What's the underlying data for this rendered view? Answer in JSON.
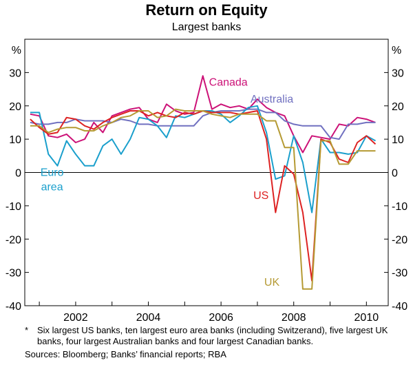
{
  "title": "Return on Equity",
  "subtitle": "Largest banks",
  "footnote_marker": "*",
  "footnote": "Six largest US banks, ten largest euro area banks (including Switzerand), five largest UK banks, four largest Australian banks and four largest Canadian banks.",
  "source": "Sources: Bloomberg; Banks’ financial reports; RBA",
  "chart_data": {
    "type": "line",
    "ylabel_left": "%",
    "ylabel_right": "%",
    "ylim": [
      -40,
      40
    ],
    "yticks": [
      30,
      20,
      10,
      0,
      -10,
      -20,
      -30,
      -40
    ],
    "xlim": [
      2000.6,
      2010.6
    ],
    "xtick_labels": [
      "2002",
      "2004",
      "2006",
      "2008",
      "2010"
    ],
    "xtick_values": [
      2002,
      2004,
      2006,
      2008,
      2010
    ],
    "grid": false,
    "legend": "labels placed next to lines",
    "series": [
      {
        "name": "Canada",
        "color": "#cc1177",
        "label_x": 2006.2,
        "label_y": 26,
        "x": [
          2000.75,
          2001.0,
          2001.25,
          2001.5,
          2001.75,
          2002.0,
          2002.25,
          2002.5,
          2002.75,
          2003.0,
          2003.25,
          2003.5,
          2003.75,
          2004.0,
          2004.25,
          2004.5,
          2004.75,
          2005.0,
          2005.25,
          2005.5,
          2005.75,
          2006.0,
          2006.25,
          2006.5,
          2006.75,
          2007.0,
          2007.25,
          2007.5,
          2007.75,
          2008.0,
          2008.25,
          2008.5,
          2008.75,
          2009.0,
          2009.25,
          2009.5,
          2009.75,
          2010.0,
          2010.25
        ],
        "values": [
          17.5,
          17,
          11,
          10.5,
          11.5,
          9,
          10,
          15,
          12,
          17,
          18,
          19,
          19.5,
          16,
          15,
          20.5,
          18.5,
          17.5,
          18,
          29,
          19,
          20.5,
          19.5,
          20,
          19,
          22,
          19.5,
          18,
          17,
          11,
          6,
          11,
          10.5,
          10,
          14.5,
          14,
          16.5,
          16,
          15
        ]
      },
      {
        "name": "Australia",
        "color": "#7070c0",
        "label_x": 2007.4,
        "label_y": 21,
        "x": [
          2000.75,
          2001.0,
          2001.25,
          2001.5,
          2001.75,
          2002.0,
          2002.25,
          2002.5,
          2002.75,
          2003.0,
          2003.25,
          2003.5,
          2003.75,
          2004.0,
          2004.25,
          2004.5,
          2004.75,
          2005.0,
          2005.25,
          2005.5,
          2005.75,
          2006.0,
          2006.25,
          2006.5,
          2006.75,
          2007.0,
          2007.25,
          2007.5,
          2007.75,
          2008.0,
          2008.25,
          2008.5,
          2008.75,
          2009.0,
          2009.25,
          2009.5,
          2009.75,
          2010.0,
          2010.25
        ],
        "values": [
          15,
          14.5,
          14.5,
          15,
          15,
          16,
          15.5,
          15.5,
          15.5,
          15,
          16,
          15.5,
          14.5,
          14.5,
          14,
          14,
          14,
          14,
          14,
          17,
          18,
          18.5,
          18.5,
          18.5,
          19,
          19,
          18,
          18,
          15.5,
          14.5,
          14,
          14,
          14,
          10.5,
          10,
          14.5,
          14.5,
          15,
          15
        ]
      },
      {
        "name": "Euro area",
        "label_lines": [
          "Euro",
          "area"
        ],
        "color": "#1a9fcc",
        "label_x": 2001.35,
        "label_y": -1,
        "x": [
          2000.75,
          2001.0,
          2001.25,
          2001.5,
          2001.75,
          2002.0,
          2002.25,
          2002.5,
          2002.75,
          2003.0,
          2003.25,
          2003.5,
          2003.75,
          2004.0,
          2004.25,
          2004.5,
          2004.75,
          2005.0,
          2005.25,
          2005.5,
          2005.75,
          2006.0,
          2006.25,
          2006.5,
          2006.75,
          2007.0,
          2007.25,
          2007.5,
          2007.75,
          2008.0,
          2008.25,
          2008.5,
          2008.75,
          2009.0,
          2009.25,
          2009.5,
          2009.75,
          2010.0,
          2010.25
        ],
        "values": [
          18,
          18,
          5.5,
          2,
          9.5,
          5.5,
          2,
          2,
          8,
          10,
          5.5,
          10,
          16.5,
          16,
          14,
          10.5,
          17,
          16.5,
          17.5,
          18.5,
          18.5,
          17.5,
          15,
          17,
          19.5,
          20,
          12,
          -2,
          -1,
          11,
          3,
          -12,
          10,
          6,
          6,
          5.5,
          6,
          11,
          9.5
        ]
      },
      {
        "name": "US",
        "color": "#dd2222",
        "label_x": 2007.1,
        "label_y": -8,
        "x": [
          2000.75,
          2001.0,
          2001.25,
          2001.5,
          2001.75,
          2002.0,
          2002.25,
          2002.5,
          2002.75,
          2003.0,
          2003.25,
          2003.5,
          2003.75,
          2004.0,
          2004.25,
          2004.5,
          2004.75,
          2005.0,
          2005.25,
          2005.5,
          2005.75,
          2006.0,
          2006.25,
          2006.5,
          2006.75,
          2007.0,
          2007.25,
          2007.5,
          2007.75,
          2008.0,
          2008.25,
          2008.5,
          2008.75,
          2009.0,
          2009.25,
          2009.5,
          2009.75,
          2010.0,
          2010.25
        ],
        "values": [
          16,
          13.5,
          11.5,
          12,
          16.5,
          16,
          14,
          13,
          15,
          16.5,
          17.5,
          18.5,
          18.5,
          17,
          18,
          17,
          16.5,
          18,
          17.5,
          18.5,
          18,
          18,
          18,
          17.5,
          18,
          18.5,
          10,
          -12,
          2,
          -0.5,
          -12,
          -32.5,
          10,
          9,
          4,
          3,
          9,
          11,
          8.5
        ]
      },
      {
        "name": "UK",
        "color": "#b59a33",
        "label_x": 2007.4,
        "label_y": -34,
        "x": [
          2000.75,
          2001.0,
          2001.25,
          2001.5,
          2001.75,
          2002.0,
          2002.25,
          2002.5,
          2002.75,
          2003.0,
          2003.25,
          2003.5,
          2003.75,
          2004.0,
          2004.25,
          2004.5,
          2004.75,
          2005.0,
          2005.25,
          2005.5,
          2005.75,
          2006.0,
          2006.25,
          2006.5,
          2006.75,
          2007.0,
          2007.25,
          2007.5,
          2007.75,
          2008.0,
          2008.25,
          2008.5,
          2008.75,
          2009.0,
          2009.25,
          2009.5,
          2009.75,
          2010.0,
          2010.25
        ],
        "values": [
          14,
          14,
          12,
          13,
          13.5,
          13.5,
          12.5,
          12.5,
          14,
          15,
          16.5,
          17,
          18.5,
          18.5,
          16.5,
          17,
          19,
          18.5,
          18.5,
          18.5,
          17.5,
          17,
          16.5,
          17.5,
          17.5,
          17.5,
          15.5,
          15.5,
          7.5,
          7.5,
          -35,
          -35,
          9.5,
          9.5,
          2.5,
          2.5,
          6.5,
          6.5,
          6.5
        ]
      }
    ]
  }
}
